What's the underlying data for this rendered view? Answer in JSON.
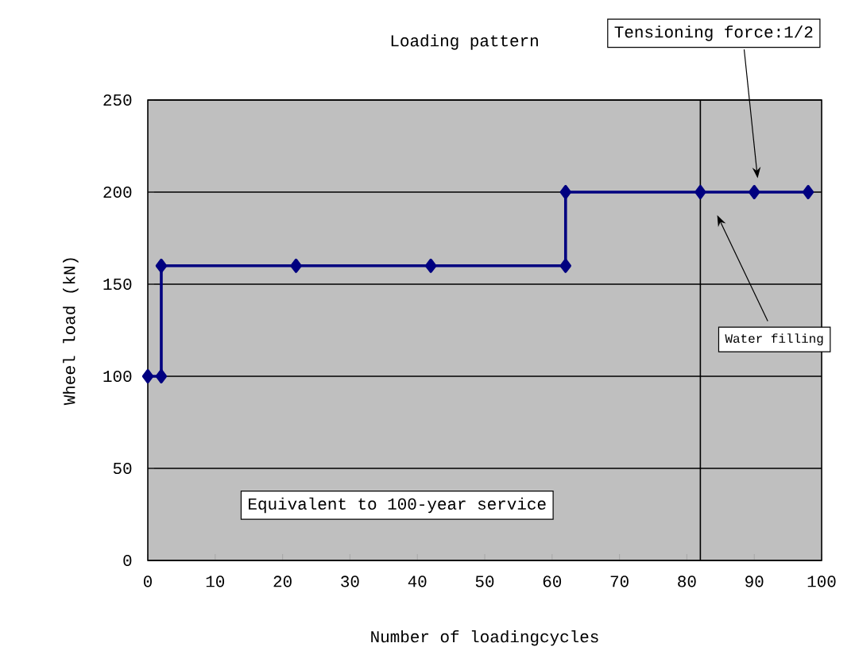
{
  "chart_data": {
    "type": "line",
    "title": "Loading pattern",
    "xlabel": "Number of loadingcycles",
    "ylabel": "Wheel load (kN)",
    "x": [
      0,
      2,
      2,
      22,
      42,
      62,
      62,
      82,
      90,
      98
    ],
    "series": [
      {
        "color": "#000080",
        "values": [
          100,
          100,
          160,
          160,
          160,
          160,
          200,
          200,
          200,
          200
        ]
      }
    ],
    "xlim": [
      0,
      100
    ],
    "xticks": [
      0,
      10,
      20,
      30,
      40,
      50,
      60,
      70,
      80,
      90,
      100
    ],
    "ylim": [
      0,
      250
    ],
    "yticks": [
      0,
      50,
      100,
      150,
      200,
      250
    ],
    "grid": "y",
    "marker": "diamond",
    "line_style": "solid",
    "ref_lines": [
      {
        "axis": "x",
        "value": 82,
        "color": "#000000"
      }
    ],
    "annotations": [
      "Tensioning force:1/2",
      "Water filling",
      "Equivalent to 100-year service"
    ]
  }
}
